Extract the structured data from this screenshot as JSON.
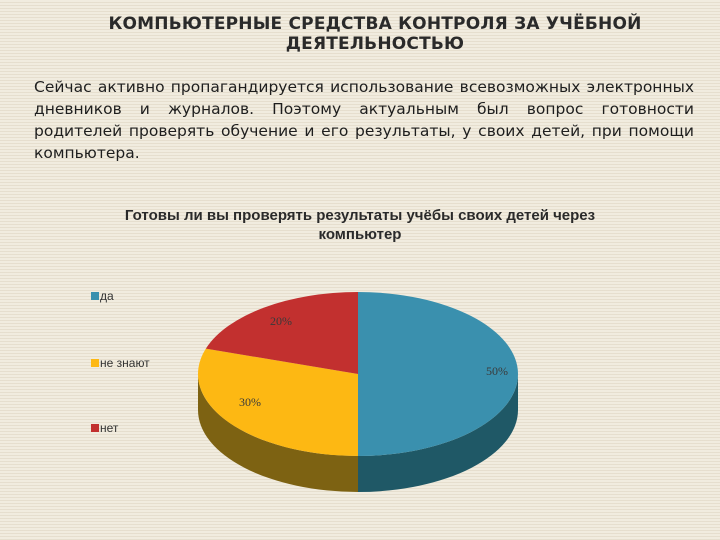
{
  "slide": {
    "title": "КОМПЬЮТЕРНЫЕ СРЕДСТВА КОНТРОЛЯ ЗА УЧЁБНОЙ ДЕЯТЕЛЬНОСТЬЮ",
    "body": "Сейчас активно пропагандируется использование всевозможных электронных дневников и журналов. Поэтому актуальным был вопрос готовности родителей проверять обучение и его результаты, у своих детей, при помощи компьютера."
  },
  "chart_data": {
    "type": "pie",
    "title": "Готовы ли вы проверять результаты учёбы своих детей через компьютер",
    "labels": [
      "да",
      "не знают",
      "нет"
    ],
    "values": [
      50,
      30,
      20
    ],
    "value_labels": [
      "50%",
      "30%",
      "20%"
    ],
    "colors": [
      "#3a90ae",
      "#fdb813",
      "#c2302f"
    ],
    "side_colors": [
      "#1f5866",
      "#7d6212",
      "#7a1f1e"
    ],
    "style": "3d",
    "legend_position": "left"
  }
}
